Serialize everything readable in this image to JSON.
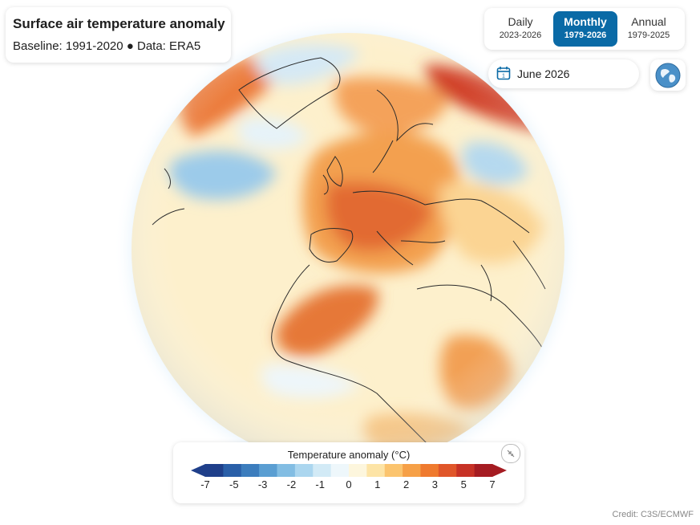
{
  "title": "Surface air temperature anomaly",
  "subtitle": "Baseline: 1991-2020 ● Data: ERA5",
  "period_tabs": [
    {
      "label": "Daily",
      "range": "2023-2026",
      "active": false
    },
    {
      "label": "Monthly",
      "range": "1979-2026",
      "active": true
    },
    {
      "label": "Annual",
      "range": "1979-2025",
      "active": false
    }
  ],
  "date_picker": {
    "icon": "calendar-icon",
    "value": "June 2026"
  },
  "view_toggle": {
    "icon": "globe-icon"
  },
  "legend": {
    "title": "Temperature anomaly (°C)",
    "ticks": [
      "-7",
      "-5",
      "-3",
      "-2",
      "-1",
      "0",
      "1",
      "2",
      "3",
      "5",
      "7"
    ],
    "colors": [
      "#1f3f8a",
      "#2a5fa8",
      "#3c7dbd",
      "#5a9ed2",
      "#82bde3",
      "#abd6ef",
      "#d2eaf6",
      "#eef7fb",
      "#fdf6dd",
      "#fde4a6",
      "#fbc46e",
      "#f6a047",
      "#ef7a2e",
      "#e0562a",
      "#c73226",
      "#a51c22"
    ]
  },
  "credit": "Credit: C3S/ECMWF"
}
